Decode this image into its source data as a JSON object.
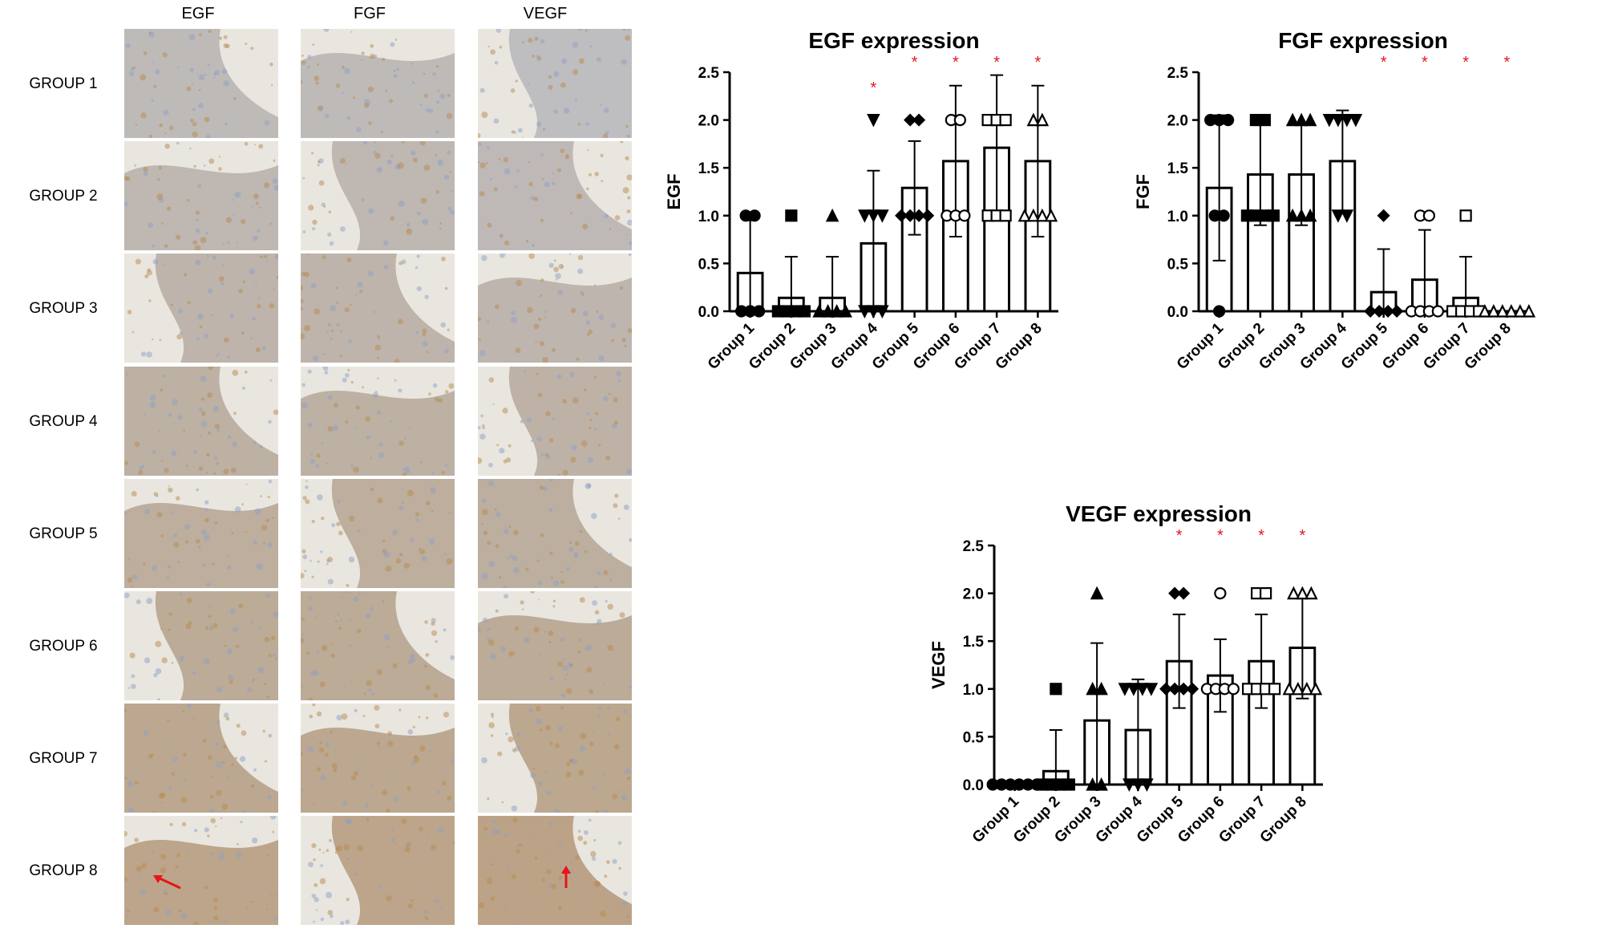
{
  "micrographs": {
    "columns": [
      "EGF",
      "FGF",
      "VEGF"
    ],
    "rows": [
      "GROUP 1",
      "GROUP 2",
      "GROUP 3",
      "GROUP 4",
      "GROUP 5",
      "GROUP 6",
      "GROUP 7",
      "GROUP 8"
    ],
    "stain_colors": {
      "hematoxylin": "#8e9fc6",
      "dab": "#b88a4e",
      "background": "#e9e6df"
    },
    "arrow_color": "#e8141a"
  },
  "chart_data": [
    {
      "type": "bar",
      "title": "EGF expression",
      "ylabel": "EGF",
      "xlabel": "",
      "categories": [
        "Group 1",
        "Group 2",
        "Group 3",
        "Group 4",
        "Group 5",
        "Group 6",
        "Group 7",
        "Group 8"
      ],
      "values": [
        0.4,
        0.14,
        0.14,
        0.71,
        1.29,
        1.57,
        1.71,
        1.57
      ],
      "sd": [
        0.55,
        0.43,
        0.43,
        0.76,
        0.49,
        0.79,
        0.76,
        0.79
      ],
      "points": [
        [
          0,
          0,
          0,
          1,
          1
        ],
        [
          0,
          0,
          0,
          0,
          1
        ],
        [
          0,
          0,
          0,
          0,
          1
        ],
        [
          0,
          0,
          0,
          1,
          1,
          1,
          2
        ],
        [
          1,
          1,
          1,
          1,
          2,
          2
        ],
        [
          1,
          1,
          1,
          2,
          2
        ],
        [
          1,
          1,
          1,
          2,
          2,
          2
        ],
        [
          1,
          1,
          1,
          1,
          2,
          2
        ]
      ],
      "markers": [
        "circle",
        "square",
        "triangle",
        "triangle-down",
        "diamond",
        "circle-open",
        "square-open",
        "triangle-open"
      ],
      "significant": [
        false,
        false,
        false,
        true,
        true,
        true,
        true,
        true
      ],
      "significance_mark": "*",
      "yticks": [
        "0.0",
        "0.5",
        "1.0",
        "1.5",
        "2.0",
        "2.5"
      ],
      "ylim": [
        0,
        2.5
      ],
      "grid": false
    },
    {
      "type": "bar",
      "title": "FGF expression",
      "ylabel": "FGF",
      "xlabel": "",
      "categories": [
        "Group 1",
        "Group 2",
        "Group 3",
        "Group 4",
        "Group 5",
        "Group 6",
        "Group 7",
        "Group 8"
      ],
      "values": [
        1.29,
        1.43,
        1.43,
        1.57,
        0.2,
        0.33,
        0.14,
        0.0
      ],
      "sd": [
        0.76,
        0.53,
        0.53,
        0.53,
        0.45,
        0.52,
        0.43,
        0.0
      ],
      "points": [
        [
          0,
          1,
          1,
          2,
          2,
          2
        ],
        [
          1,
          1,
          1,
          1,
          2,
          2
        ],
        [
          1,
          1,
          1,
          2,
          2,
          2
        ],
        [
          1,
          1,
          2,
          2,
          2,
          2
        ],
        [
          0,
          0,
          0,
          0,
          1
        ],
        [
          0,
          0,
          0,
          0,
          1,
          1
        ],
        [
          0,
          0,
          0,
          0,
          1
        ],
        [
          0,
          0,
          0,
          0,
          0,
          0
        ]
      ],
      "markers": [
        "circle",
        "square",
        "triangle",
        "triangle-down",
        "diamond",
        "circle-open",
        "square-open",
        "triangle-open"
      ],
      "significant": [
        false,
        false,
        false,
        false,
        true,
        true,
        true,
        true
      ],
      "significance_mark": "*",
      "yticks": [
        "0.0",
        "0.5",
        "1.0",
        "1.5",
        "2.0",
        "2.5"
      ],
      "ylim": [
        0,
        2.5
      ],
      "grid": false
    },
    {
      "type": "bar",
      "title": "VEGF expression",
      "ylabel": "VEGF",
      "xlabel": "",
      "categories": [
        "Group 1",
        "Group 2",
        "Group 3",
        "Group 4",
        "Group 5",
        "Group 6",
        "Group 7",
        "Group 8"
      ],
      "values": [
        0.0,
        0.14,
        0.67,
        0.57,
        1.29,
        1.14,
        1.29,
        1.43
      ],
      "sd": [
        0.0,
        0.43,
        0.81,
        0.53,
        0.49,
        0.38,
        0.49,
        0.53
      ],
      "points": [
        [
          0,
          0,
          0,
          0,
          0,
          0
        ],
        [
          0,
          0,
          0,
          0,
          1
        ],
        [
          0,
          0,
          1,
          1,
          2
        ],
        [
          0,
          0,
          0,
          1,
          1,
          1,
          1
        ],
        [
          1,
          1,
          1,
          1,
          2,
          2
        ],
        [
          1,
          1,
          1,
          1,
          2
        ],
        [
          1,
          1,
          1,
          1,
          2,
          2
        ],
        [
          1,
          1,
          1,
          1,
          2,
          2,
          2
        ]
      ],
      "markers": [
        "circle",
        "square",
        "triangle",
        "triangle-down",
        "diamond",
        "circle-open",
        "square-open",
        "triangle-open"
      ],
      "significant": [
        false,
        false,
        false,
        false,
        true,
        true,
        true,
        true
      ],
      "significance_mark": "*",
      "yticks": [
        "0.0",
        "0.5",
        "1.0",
        "1.5",
        "2.0",
        "2.5"
      ],
      "ylim": [
        0,
        2.5
      ],
      "grid": false
    }
  ]
}
